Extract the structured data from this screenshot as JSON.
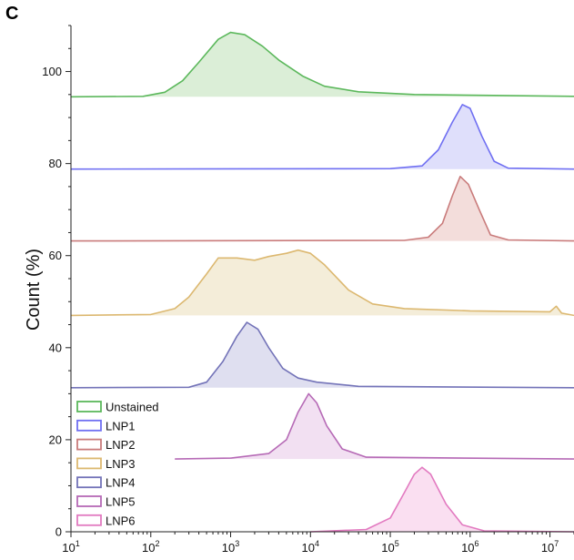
{
  "panel_label": "C",
  "chart_data": {
    "type": "area",
    "title": "",
    "xlabel": "",
    "ylabel": "Count (%)",
    "x_scale": "log",
    "xlim": [
      10,
      20000000
    ],
    "ylim": [
      0,
      110
    ],
    "x_ticks": [
      {
        "base": "10",
        "exp": "1"
      },
      {
        "base": "10",
        "exp": "2"
      },
      {
        "base": "10",
        "exp": "3"
      },
      {
        "base": "10",
        "exp": "4"
      },
      {
        "base": "10",
        "exp": "5"
      },
      {
        "base": "10",
        "exp": "6"
      },
      {
        "base": "10",
        "exp": "7"
      }
    ],
    "y_ticks": [
      "0",
      "20",
      "40",
      "60",
      "80",
      "100"
    ],
    "legend_position": "bottom-left",
    "series": [
      {
        "name": "Unstained",
        "color": "#5cb85c",
        "fill": "#d7ecd3",
        "baseline": 94.5,
        "x_end": 20000000,
        "points": [
          [
            10,
            94.5
          ],
          [
            80,
            94.6
          ],
          [
            150,
            95.5
          ],
          [
            250,
            98
          ],
          [
            400,
            102
          ],
          [
            700,
            107
          ],
          [
            1000,
            108.5
          ],
          [
            1500,
            108
          ],
          [
            2500,
            105.5
          ],
          [
            4000,
            102.5
          ],
          [
            8000,
            99
          ],
          [
            15000,
            96.8
          ],
          [
            40000,
            95.6
          ],
          [
            200000,
            95
          ],
          [
            2000000,
            94.8
          ],
          [
            20000000,
            94.6
          ]
        ]
      },
      {
        "name": "LNP1",
        "color": "#6f6ff2",
        "fill": "#dcdcfb",
        "baseline": 78.8,
        "x_end": 20000000,
        "points": [
          [
            10,
            78.8
          ],
          [
            100000,
            78.9
          ],
          [
            250000,
            79.5
          ],
          [
            400000,
            83
          ],
          [
            600000,
            89
          ],
          [
            800000,
            92.8
          ],
          [
            1000000,
            92
          ],
          [
            1400000,
            86
          ],
          [
            2000000,
            80.5
          ],
          [
            3000000,
            79
          ],
          [
            20000000,
            78.8
          ]
        ]
      },
      {
        "name": "LNP2",
        "color": "#c97b7b",
        "fill": "#f2d9d7",
        "baseline": 63.2,
        "x_end": 20000000,
        "points": [
          [
            10,
            63.2
          ],
          [
            150000,
            63.3
          ],
          [
            300000,
            64
          ],
          [
            450000,
            67
          ],
          [
            600000,
            73
          ],
          [
            750000,
            77.2
          ],
          [
            950000,
            75.5
          ],
          [
            1300000,
            70
          ],
          [
            1800000,
            64.5
          ],
          [
            3000000,
            63.4
          ],
          [
            20000000,
            63.2
          ]
        ]
      },
      {
        "name": "LNP3",
        "color": "#dcb870",
        "fill": "#f3ebd5",
        "baseline": 47,
        "x_end": 20000000,
        "points": [
          [
            10,
            47
          ],
          [
            100,
            47.2
          ],
          [
            200,
            48.5
          ],
          [
            300,
            51
          ],
          [
            500,
            56
          ],
          [
            700,
            59.5
          ],
          [
            1200,
            59.5
          ],
          [
            2000,
            59
          ],
          [
            3000,
            59.8
          ],
          [
            5000,
            60.5
          ],
          [
            7000,
            61.2
          ],
          [
            10000,
            60.5
          ],
          [
            15000,
            58
          ],
          [
            30000,
            52.5
          ],
          [
            60000,
            49.5
          ],
          [
            150000,
            48.5
          ],
          [
            1000000,
            48
          ],
          [
            10000000,
            47.8
          ],
          [
            12000000,
            49
          ],
          [
            14000000,
            47.5
          ],
          [
            20000000,
            47
          ]
        ]
      },
      {
        "name": "LNP4",
        "color": "#7373b8",
        "fill": "#dcdcee",
        "baseline": 31.3,
        "x_end": 20000000,
        "points": [
          [
            10,
            31.3
          ],
          [
            300,
            31.4
          ],
          [
            500,
            32.5
          ],
          [
            800,
            37
          ],
          [
            1200,
            42.5
          ],
          [
            1600,
            45.5
          ],
          [
            2200,
            44
          ],
          [
            3000,
            40
          ],
          [
            4500,
            35.5
          ],
          [
            7000,
            33.4
          ],
          [
            12000,
            32.5
          ],
          [
            40000,
            31.6
          ],
          [
            20000000,
            31.3
          ]
        ]
      },
      {
        "name": "LNP5",
        "color": "#b66ab6",
        "fill": "#f1ddf1",
        "baseline": 15.8,
        "x_end": 20000000,
        "points": [
          [
            200,
            15.8
          ],
          [
            1000,
            16
          ],
          [
            3000,
            17
          ],
          [
            5000,
            20
          ],
          [
            7000,
            26
          ],
          [
            9500,
            30
          ],
          [
            12000,
            28
          ],
          [
            16000,
            23
          ],
          [
            25000,
            18
          ],
          [
            50000,
            16.2
          ],
          [
            20000000,
            15.8
          ]
        ]
      },
      {
        "name": "LNP6",
        "color": "#e27ac0",
        "fill": "#f9dcef",
        "baseline": 0,
        "x_end": 20000000,
        "points": [
          [
            10000,
            0
          ],
          [
            50000,
            0.5
          ],
          [
            100000,
            3
          ],
          [
            150000,
            8.5
          ],
          [
            200000,
            12.5
          ],
          [
            250000,
            14
          ],
          [
            320000,
            12.5
          ],
          [
            500000,
            6
          ],
          [
            800000,
            1.5
          ],
          [
            1500000,
            0.2
          ],
          [
            20000000,
            0
          ]
        ]
      }
    ]
  }
}
